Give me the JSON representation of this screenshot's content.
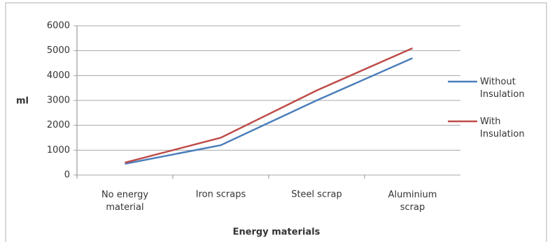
{
  "chart_data": {
    "type": "line",
    "categories": [
      "No energy\nmaterial",
      "Iron scraps",
      "Steel  scrap",
      "Aluminium\nscrap"
    ],
    "series": [
      {
        "name": "Without\nInsulation",
        "color": "#4a7ebb",
        "values": [
          450,
          1200,
          3000,
          4700
        ]
      },
      {
        "name": "With\nInsulation",
        "color": "#be4b48",
        "values": [
          500,
          1500,
          3400,
          5100
        ]
      }
    ],
    "ylabel": "ml",
    "xlabel": "Energy materials",
    "ylim": [
      0,
      6000
    ],
    "yticks": [
      0,
      1000,
      2000,
      3000,
      4000,
      5000,
      6000
    ],
    "grid": true
  }
}
